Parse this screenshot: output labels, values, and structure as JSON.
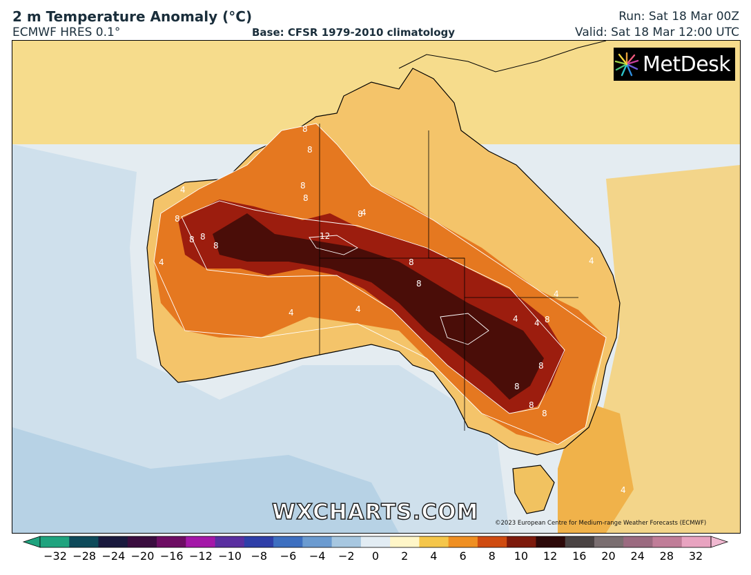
{
  "header": {
    "title": "2 m Temperature Anomaly (°C)",
    "model": "ECMWF HRES 0.1°",
    "base": "Base: CFSR 1979-2010 climatology",
    "run": "Run: Sat 18 Mar 00Z",
    "valid": "Valid: Sat 18 Mar 12:00 UTC"
  },
  "map": {
    "logo_text": "MetDesk",
    "watermark": "WXCHARTS.COM",
    "copyright": "©2023 European Centre for Medium-range Weather Forecasts (ECMWF)",
    "contour_labels": [
      "4",
      "8",
      "8",
      "8",
      "8",
      "8",
      "8",
      "4",
      "8",
      "4",
      "8",
      "12",
      "8",
      "8",
      "8",
      "4",
      "4",
      "8",
      "4",
      "4",
      "8",
      "8",
      "8",
      "8",
      "4",
      "4",
      "4"
    ]
  },
  "colorbar": {
    "ticks": [
      "−32",
      "−28",
      "−24",
      "−20",
      "−16",
      "−12",
      "−10",
      "−8",
      "−6",
      "−4",
      "−2",
      "0",
      "2",
      "4",
      "6",
      "8",
      "10",
      "12",
      "16",
      "20",
      "24",
      "28",
      "32"
    ],
    "colors": [
      "#1fa37e",
      "#0e4a5a",
      "#1a1a3e",
      "#3a0d3f",
      "#6d0d63",
      "#a417a8",
      "#5a2fa0",
      "#2f3fa8",
      "#3d6fc0",
      "#6b9bd0",
      "#a7c7e0",
      "#e2ecf3",
      "#fff6c8",
      "#f5c64a",
      "#ef8f22",
      "#cf4b10",
      "#7d1a0c",
      "#2d0909",
      "#4a4343",
      "#7a6e70",
      "#9b6a80",
      "#c07d98",
      "#e8a3c0"
    ]
  }
}
